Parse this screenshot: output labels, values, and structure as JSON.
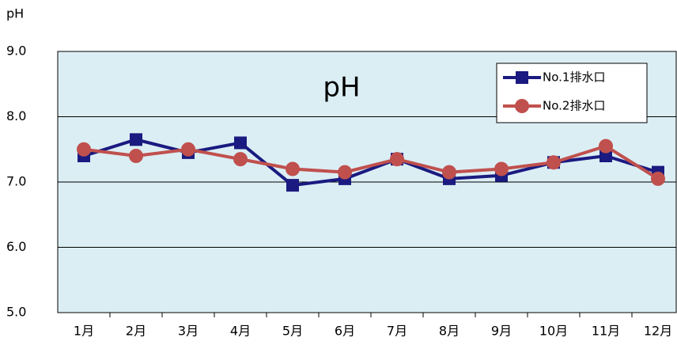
{
  "chart_data": {
    "type": "line",
    "title": "pH",
    "y_label": "pH",
    "categories": [
      "1月",
      "2月",
      "3月",
      "4月",
      "5月",
      "6月",
      "7月",
      "8月",
      "9月",
      "10月",
      "11月",
      "12月"
    ],
    "series": [
      {
        "name": "No.1排水口",
        "color": "#1a1a80",
        "marker": "square",
        "values": [
          7.4,
          7.65,
          7.45,
          7.6,
          6.95,
          7.05,
          7.35,
          7.05,
          7.1,
          7.3,
          7.4,
          7.15
        ]
      },
      {
        "name": "No.2排水口",
        "color": "#c0504d",
        "marker": "circle",
        "values": [
          7.5,
          7.4,
          7.5,
          7.35,
          7.2,
          7.15,
          7.35,
          7.15,
          7.2,
          7.3,
          7.55,
          7.05
        ]
      }
    ],
    "ylim": [
      5,
      9
    ],
    "yticks": [
      {
        "value": 5,
        "label": "5.0"
      },
      {
        "value": 6,
        "label": "6.0"
      },
      {
        "value": 7,
        "label": "7.0"
      },
      {
        "value": 8,
        "label": "8.0"
      },
      {
        "value": 9,
        "label": "9.0"
      }
    ],
    "grid": true,
    "legend": "top-right"
  }
}
